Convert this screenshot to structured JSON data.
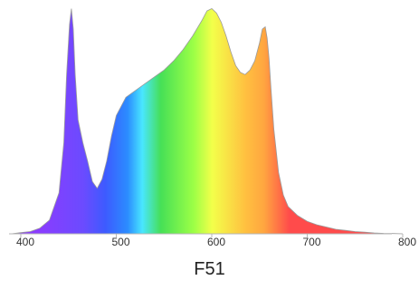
{
  "caption": "F51",
  "chart_data": {
    "type": "area",
    "title": "",
    "xlabel": "",
    "ylabel": "",
    "xlim": [
      390,
      800
    ],
    "ylim": [
      0,
      1
    ],
    "grid": false,
    "legend": "none",
    "x_ticks": [
      400,
      500,
      600,
      700,
      800
    ],
    "tick_labels": [
      "400",
      "500",
      "600",
      "700",
      "800"
    ],
    "series": [
      {
        "x": [
          390,
          400,
          410,
          420,
          430,
          440,
          445,
          448,
          451,
          453,
          455,
          457,
          460,
          465,
          470,
          475,
          480,
          485,
          490,
          495,
          500,
          505,
          510,
          520,
          530,
          540,
          550,
          560,
          570,
          580,
          590,
          595,
          600,
          605,
          610,
          615,
          620,
          625,
          630,
          635,
          640,
          645,
          650,
          653,
          656,
          658,
          660,
          662,
          665,
          670,
          675,
          680,
          690,
          700,
          710,
          720,
          730,
          740,
          750,
          760,
          770,
          780,
          790,
          800
        ],
        "values": [
          0.0,
          0.005,
          0.01,
          0.025,
          0.06,
          0.18,
          0.4,
          0.7,
          0.92,
          0.99,
          0.9,
          0.7,
          0.5,
          0.4,
          0.32,
          0.23,
          0.2,
          0.24,
          0.32,
          0.43,
          0.52,
          0.56,
          0.6,
          0.63,
          0.66,
          0.69,
          0.72,
          0.76,
          0.81,
          0.87,
          0.94,
          0.98,
          0.99,
          0.97,
          0.93,
          0.87,
          0.8,
          0.74,
          0.71,
          0.7,
          0.72,
          0.76,
          0.84,
          0.9,
          0.91,
          0.86,
          0.77,
          0.64,
          0.46,
          0.27,
          0.17,
          0.12,
          0.08,
          0.055,
          0.04,
          0.03,
          0.02,
          0.015,
          0.01,
          0.007,
          0.004,
          0.002,
          0.001,
          0.0
        ]
      }
    ],
    "fill": "visible-spectrum-gradient",
    "colors": {
      "violet": "#8a3cff",
      "blue": "#3d5bff",
      "cyan": "#49e6ff",
      "green": "#46e056",
      "yellow": "#f3ff4a",
      "orange": "#ffa640",
      "red": "#ff4b4b"
    }
  }
}
